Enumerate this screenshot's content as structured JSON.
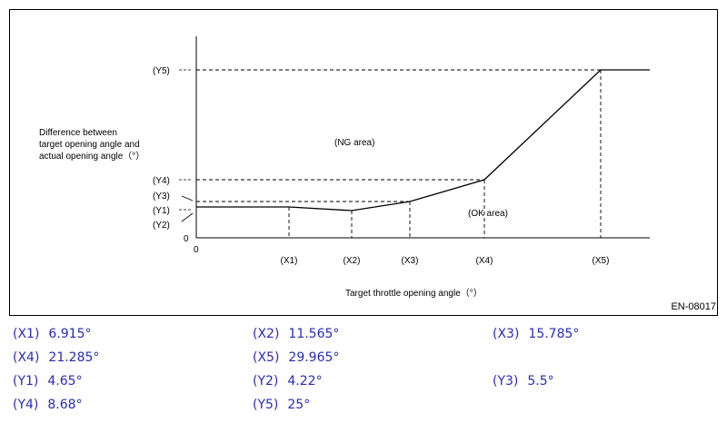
{
  "diagram": {
    "ylabel": [
      "Difference between",
      "target opening angle and",
      "actual opening angle（°）"
    ],
    "xlabel": "Target throttle opening angle（°）",
    "origin_label": "0",
    "y_zero_label": "0",
    "x_ticks": [
      "(X1)",
      "(X2)",
      "(X3)",
      "(X4)",
      "(X5)"
    ],
    "y_ticks": [
      "(Y5)",
      "(Y4)",
      "(Y3)",
      "(Y1)",
      "(Y2)"
    ],
    "ng_area": "(NG area)",
    "ok_area": "(OK area)",
    "ref_code": "EN-08017"
  },
  "legend": [
    [
      {
        "k": "(X1)",
        "v": "6.915°"
      },
      {
        "k": "(X2)",
        "v": "11.565°"
      },
      {
        "k": "(X3)",
        "v": "15.785°"
      }
    ],
    [
      {
        "k": "(X4)",
        "v": "21.285°"
      },
      {
        "k": "(X5)",
        "v": "29.965°"
      }
    ],
    [
      {
        "k": "(Y1)",
        "v": "4.65°"
      },
      {
        "k": "(Y2)",
        "v": "4.22°"
      },
      {
        "k": "(Y3)",
        "v": "5.5°"
      }
    ],
    [
      {
        "k": "(Y4)",
        "v": "8.68°"
      },
      {
        "k": "(Y5)",
        "v": "25°"
      }
    ]
  ],
  "colors": {
    "legend_text": "#2a2ab8",
    "line": "#000000"
  }
}
